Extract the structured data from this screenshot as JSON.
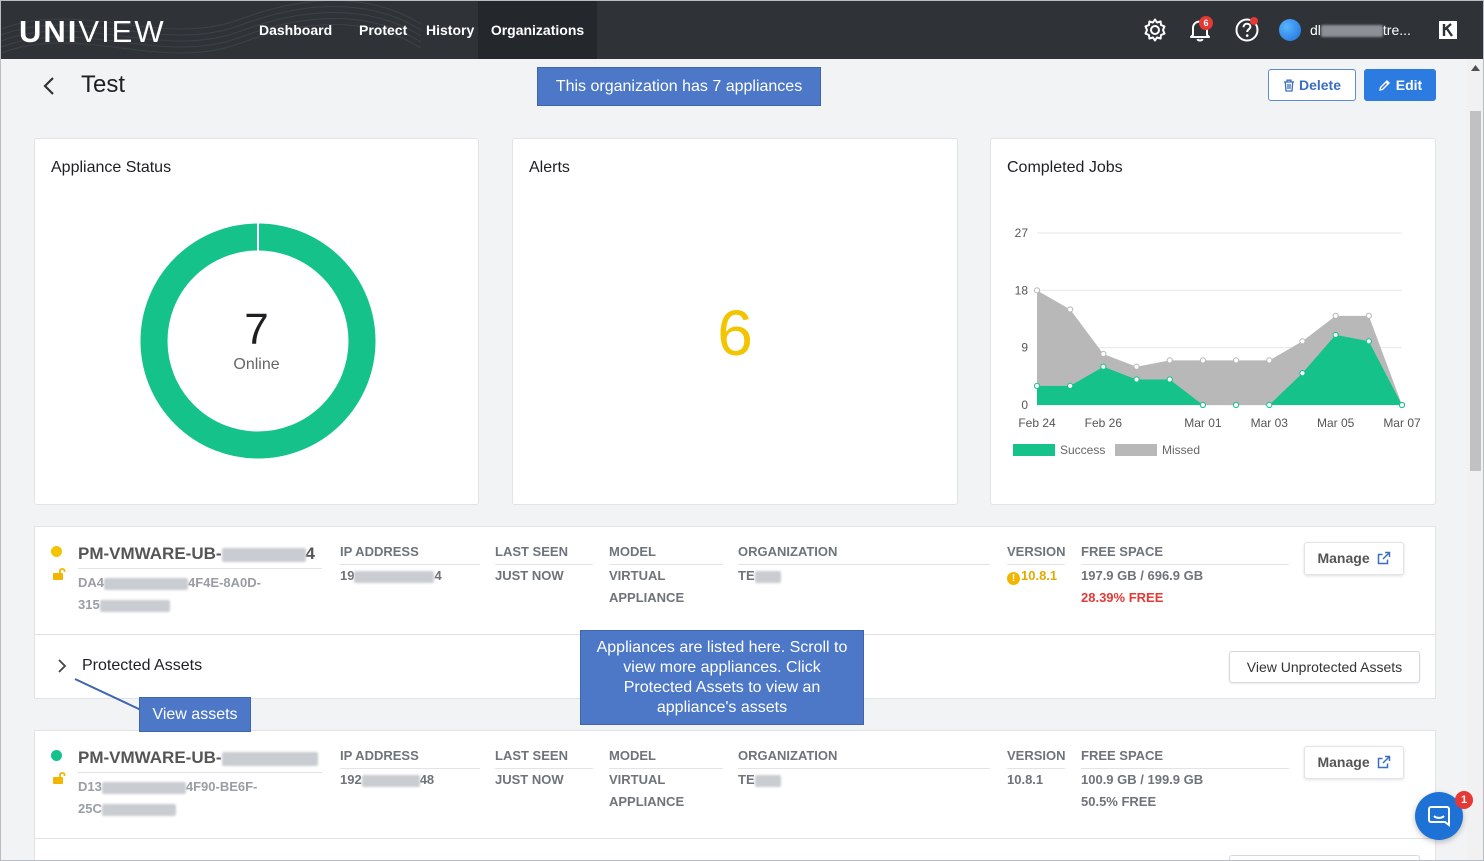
{
  "nav": {
    "logo_bold": "UNI",
    "logo_thin": "VIEW",
    "items": [
      {
        "label": "Dashboard"
      },
      {
        "label": "Protect"
      },
      {
        "label": "History"
      },
      {
        "label": "Organizations"
      }
    ],
    "active_item": "Organizations",
    "notifications_badge": "6",
    "user_prefix": "dl",
    "user_suffix": "tre..."
  },
  "header": {
    "title": "Test",
    "delete_label": "Delete",
    "edit_label": "Edit"
  },
  "tooltips": {
    "appliance_count": "This organization has 7 appliances",
    "appliances_hint": "Appliances are listed here. Scroll to view more appliances. Click Protected Assets to view an appliance's assets",
    "view_assets": "View assets"
  },
  "cards": {
    "appliance_status": {
      "title": "Appliance Status",
      "count": "7",
      "label": "Online"
    },
    "alerts": {
      "title": "Alerts",
      "count": "6"
    },
    "completed_jobs": {
      "title": "Completed Jobs"
    }
  },
  "chart_data": {
    "type": "area",
    "title": "Completed Jobs",
    "x": [
      "Feb 24",
      "Feb 25",
      "Feb 26",
      "Feb 27",
      "Feb 28",
      "Mar 01",
      "Mar 02",
      "Mar 03",
      "Mar 04",
      "Mar 05",
      "Mar 06",
      "Mar 07"
    ],
    "x_tick_labels": [
      "Feb 24",
      "Feb 26",
      "Mar 01",
      "Mar 03",
      "Mar 05",
      "Mar 07"
    ],
    "y_ticks": [
      0,
      9,
      18,
      27
    ],
    "ylim": [
      0,
      27
    ],
    "grid": true,
    "legend_placement": "bottom-left",
    "series": [
      {
        "name": "Success",
        "color": "#14c28a",
        "values": [
          3,
          3,
          6,
          4,
          4,
          0,
          0,
          0,
          5,
          11,
          10,
          0
        ]
      },
      {
        "name": "Missed",
        "color": "#b8b8b8",
        "values": [
          18,
          15,
          8,
          6,
          7,
          7,
          7,
          7,
          10,
          14,
          14,
          0
        ]
      }
    ]
  },
  "appliance_columns": {
    "ip": "IP ADDRESS",
    "last_seen": "LAST SEEN",
    "model": "MODEL",
    "organization": "ORGANIZATION",
    "version": "VERSION",
    "free_space": "FREE SPACE"
  },
  "appliances": [
    {
      "status_color": "#f2c500",
      "name": "PM-VMWARE-UB-",
      "name_end": "4",
      "id_line1_prefix": "DA4",
      "id_line1_suffix": "4F4E-8A0D-",
      "id_line2_prefix": "315",
      "ip_prefix": "19",
      "ip_suffix": "4",
      "last_seen": "JUST NOW",
      "model_line1": "VIRTUAL",
      "model_line2": "APPLIANCE",
      "org_prefix": "TE",
      "version": "10.8.1",
      "version_warning": true,
      "free_space": "197.9 GB / 696.9 GB",
      "free_pct": "28.39% FREE",
      "free_pct_low": true,
      "manage_label": "Manage",
      "protected_assets_label": "Protected Assets",
      "view_unprotected_label": "View Unprotected Assets"
    },
    {
      "status_color": "#14c28a",
      "name": "PM-VMWARE-UB-",
      "name_end": "",
      "id_line1_prefix": "D13",
      "id_line1_suffix": "4F90-BE6F-",
      "id_line2_prefix": "25C",
      "ip_prefix": "192",
      "ip_suffix": "48",
      "last_seen": "JUST NOW",
      "model_line1": "VIRTUAL",
      "model_line2": "APPLIANCE",
      "org_prefix": "TE",
      "version": "10.8.1",
      "version_warning": false,
      "free_space": "100.9 GB / 199.9 GB",
      "free_pct": "50.5% FREE",
      "free_pct_low": false,
      "manage_label": "Manage"
    }
  ],
  "chat_badge": "1",
  "colors": {
    "nav_bg": "#2f3338",
    "accent": "#2c7be0",
    "online_green": "#14c28a",
    "alert_yellow": "#f2c500",
    "tooltip_blue": "#4d78c8"
  }
}
